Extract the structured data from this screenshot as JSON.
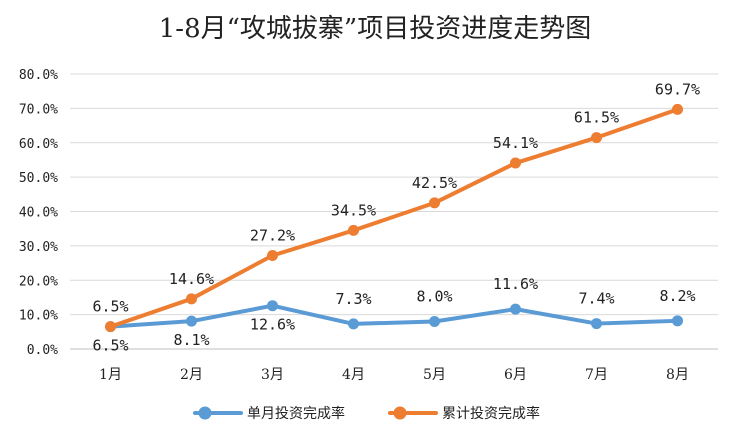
{
  "chart_data": {
    "type": "line",
    "title": "1-8月“攻城拔寨”项目投资进度走势图",
    "categories": [
      "1月",
      "2月",
      "3月",
      "4月",
      "5月",
      "6月",
      "7月",
      "8月"
    ],
    "yticks": [
      "0.0%",
      "10.0%",
      "20.0%",
      "30.0%",
      "40.0%",
      "50.0%",
      "60.0%",
      "70.0%",
      "80.0%"
    ],
    "ylim": [
      0,
      80
    ],
    "grid": true,
    "legend_position": "bottom",
    "series": [
      {
        "name": "单月投资完成率",
        "color": "#5b9bd5",
        "values": [
          6.5,
          8.1,
          12.6,
          7.3,
          8.0,
          11.6,
          7.4,
          8.2
        ],
        "labels": [
          "6.5%",
          "8.1%",
          "12.6%",
          "7.3%",
          "8.0%",
          "11.6%",
          "7.4%",
          "8.2%"
        ]
      },
      {
        "name": "累计投资完成率",
        "color": "#ed7d31",
        "values": [
          6.5,
          14.6,
          27.2,
          34.5,
          42.5,
          54.1,
          61.5,
          69.7
        ],
        "labels": [
          "6.5%",
          "14.6%",
          "27.2%",
          "34.5%",
          "42.5%",
          "54.1%",
          "61.5%",
          "69.7%"
        ]
      }
    ]
  }
}
